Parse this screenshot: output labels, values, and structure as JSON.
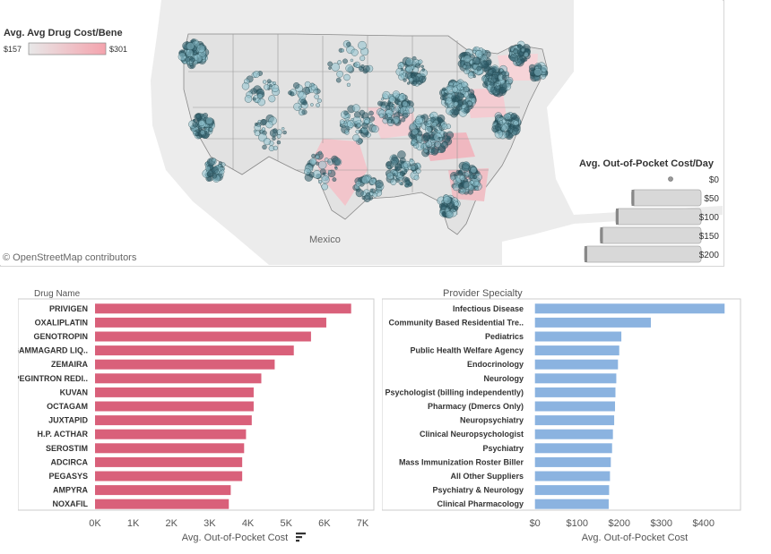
{
  "map": {
    "attribution": "© OpenStreetMap contributors",
    "mexico_label": "Mexico",
    "color_legend": {
      "title": "Avg. Avg Drug Cost/Bene",
      "min_label": "$157",
      "max_label": "$301",
      "min_color": "#e8e8e8",
      "max_color": "#f4a3ad"
    },
    "size_legend": {
      "title": "Avg. Out-of-Pocket Cost/Day",
      "items": [
        {
          "label": "$0",
          "value": 0
        },
        {
          "label": "$50",
          "value": 50
        },
        {
          "label": "$100",
          "value": 100
        },
        {
          "label": "$150",
          "value": 150
        },
        {
          "label": "$200",
          "value": 200
        }
      ]
    }
  },
  "chart_data": [
    {
      "type": "bar",
      "orientation": "horizontal",
      "header": "Drug Name",
      "categories": [
        "PRIVIGEN",
        "OXALIPLATIN",
        "GENOTROPIN",
        "GAMMAGARD LIQ..",
        "ZEMAIRA",
        "PEGINTRON REDI..",
        "KUVAN",
        "OCTAGAM",
        "JUXTAPID",
        "H.P. ACTHAR",
        "SEROSTIM",
        "ADCIRCA",
        "PEGASYS",
        "AMPYRA",
        "NOXAFIL"
      ],
      "values": [
        6700,
        6050,
        5650,
        5200,
        4700,
        4350,
        4150,
        4150,
        4100,
        3950,
        3900,
        3850,
        3850,
        3550,
        3500
      ],
      "xlabel": "Avg. Out-of-Pocket Cost",
      "xlim": [
        0,
        7200
      ],
      "ticks": [
        0,
        1000,
        2000,
        3000,
        4000,
        5000,
        6000,
        7000
      ],
      "tick_labels": [
        "0K",
        "1K",
        "2K",
        "3K",
        "4K",
        "5K",
        "6K",
        "7K"
      ],
      "color": "#d9607a"
    },
    {
      "type": "bar",
      "orientation": "horizontal",
      "header": "Provider Specialty",
      "categories": [
        "Infectious Disease",
        "Community Based Residential Tre..",
        "Pediatrics",
        "Public Health Welfare Agency",
        "Endocrinology",
        "Neurology",
        "Psychologist (billing independently)",
        "Pharmacy  (Dmercs Only)",
        "Neuropsychiatry",
        "Clinical Neuropsychologist",
        "Psychiatry",
        "Mass Immunization Roster Biller",
        "All Other Suppliers",
        "Psychiatry & Neurology",
        "Clinical Pharmacology"
      ],
      "values": [
        450,
        275,
        205,
        200,
        197,
        193,
        191,
        190,
        188,
        185,
        183,
        180,
        178,
        176,
        175
      ],
      "xlabel": "Avg. Out-of-Pocket Cost",
      "xlim": [
        -10,
        475
      ],
      "ticks": [
        0,
        100,
        200,
        300,
        400
      ],
      "tick_labels": [
        "$0",
        "$100",
        "$200",
        "$300",
        "$400"
      ],
      "color": "#8bb3e0"
    }
  ]
}
